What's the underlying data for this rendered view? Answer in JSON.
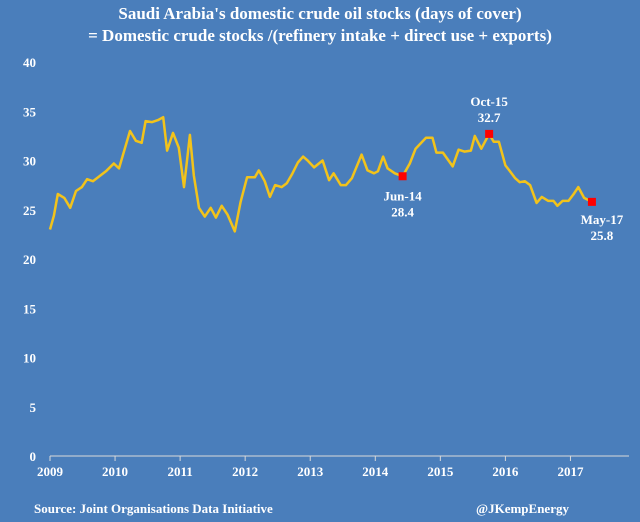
{
  "chart_data": {
    "type": "line",
    "title": "Saudi Arabia's domestic crude oil stocks  (days of cover)",
    "subtitle": "= Domestic crude stocks /(refinery intake + direct use + exports)",
    "xlabel": "",
    "ylabel": "",
    "xlim": [
      2009,
      2017.9
    ],
    "ylim": [
      0,
      40
    ],
    "x_ticks": [
      2009,
      2010,
      2011,
      2012,
      2013,
      2014,
      2015,
      2016,
      2017
    ],
    "y_ticks": [
      0,
      5,
      10,
      15,
      20,
      25,
      30,
      35,
      40
    ],
    "grid": false,
    "line_color": "#f2c31b",
    "marker_color": "#ff0000",
    "series": [
      {
        "name": "Days of cover",
        "points": [
          [
            2009.0,
            23.0
          ],
          [
            2009.06,
            24.4
          ],
          [
            2009.12,
            26.6
          ],
          [
            2009.22,
            26.2
          ],
          [
            2009.31,
            25.2
          ],
          [
            2009.4,
            26.9
          ],
          [
            2009.49,
            27.3
          ],
          [
            2009.57,
            28.1
          ],
          [
            2009.66,
            27.9
          ],
          [
            2009.76,
            28.4
          ],
          [
            2009.86,
            28.9
          ],
          [
            2009.98,
            29.7
          ],
          [
            2010.06,
            29.2
          ],
          [
            2010.15,
            31.2
          ],
          [
            2010.23,
            33.0
          ],
          [
            2010.32,
            32.0
          ],
          [
            2010.41,
            31.8
          ],
          [
            2010.47,
            34.0
          ],
          [
            2010.57,
            33.9
          ],
          [
            2010.66,
            34.1
          ],
          [
            2010.74,
            34.4
          ],
          [
            2010.8,
            31.0
          ],
          [
            2010.89,
            32.8
          ],
          [
            2010.98,
            31.3
          ],
          [
            2011.06,
            27.3
          ],
          [
            2011.15,
            32.6
          ],
          [
            2011.21,
            28.5
          ],
          [
            2011.29,
            25.2
          ],
          [
            2011.38,
            24.3
          ],
          [
            2011.47,
            25.2
          ],
          [
            2011.55,
            24.2
          ],
          [
            2011.64,
            25.4
          ],
          [
            2011.73,
            24.5
          ],
          [
            2011.84,
            22.8
          ],
          [
            2011.93,
            25.8
          ],
          [
            2012.03,
            28.3
          ],
          [
            2012.15,
            28.3
          ],
          [
            2012.21,
            29.0
          ],
          [
            2012.3,
            27.9
          ],
          [
            2012.38,
            26.3
          ],
          [
            2012.46,
            27.5
          ],
          [
            2012.56,
            27.3
          ],
          [
            2012.64,
            27.7
          ],
          [
            2012.72,
            28.6
          ],
          [
            2012.81,
            29.8
          ],
          [
            2012.89,
            30.4
          ],
          [
            2012.96,
            30.0
          ],
          [
            2013.06,
            29.3
          ],
          [
            2013.19,
            30.0
          ],
          [
            2013.29,
            28.0
          ],
          [
            2013.36,
            28.7
          ],
          [
            2013.47,
            27.5
          ],
          [
            2013.55,
            27.5
          ],
          [
            2013.64,
            28.2
          ],
          [
            2013.79,
            30.6
          ],
          [
            2013.88,
            29.0
          ],
          [
            2013.98,
            28.7
          ],
          [
            2014.04,
            28.9
          ],
          [
            2014.12,
            30.4
          ],
          [
            2014.19,
            29.2
          ],
          [
            2014.3,
            28.7
          ],
          [
            2014.42,
            28.4
          ],
          [
            2014.53,
            29.7
          ],
          [
            2014.62,
            31.2
          ],
          [
            2014.78,
            32.3
          ],
          [
            2014.88,
            32.3
          ],
          [
            2014.94,
            30.8
          ],
          [
            2015.04,
            30.8
          ],
          [
            2015.19,
            29.4
          ],
          [
            2015.28,
            31.1
          ],
          [
            2015.37,
            30.9
          ],
          [
            2015.47,
            31.0
          ],
          [
            2015.53,
            32.5
          ],
          [
            2015.63,
            31.2
          ],
          [
            2015.75,
            32.7
          ],
          [
            2015.82,
            31.9
          ],
          [
            2015.9,
            31.9
          ],
          [
            2016.0,
            29.5
          ],
          [
            2016.06,
            29.0
          ],
          [
            2016.15,
            28.2
          ],
          [
            2016.22,
            27.8
          ],
          [
            2016.3,
            27.9
          ],
          [
            2016.38,
            27.5
          ],
          [
            2016.48,
            25.7
          ],
          [
            2016.56,
            26.3
          ],
          [
            2016.66,
            25.9
          ],
          [
            2016.74,
            25.9
          ],
          [
            2016.8,
            25.4
          ],
          [
            2016.88,
            25.9
          ],
          [
            2016.97,
            25.9
          ],
          [
            2017.05,
            26.6
          ],
          [
            2017.12,
            27.3
          ],
          [
            2017.21,
            26.2
          ],
          [
            2017.33,
            25.8
          ]
        ]
      }
    ],
    "annotations": [
      {
        "x": 2014.42,
        "y": 28.4,
        "label": "Jun-14",
        "value": "28.4",
        "position": "below"
      },
      {
        "x": 2015.75,
        "y": 32.7,
        "label": "Oct-15",
        "value": "32.7",
        "position": "above"
      },
      {
        "x": 2017.33,
        "y": 25.8,
        "label": "May-17",
        "value": "25.8",
        "position": "below-right"
      }
    ]
  },
  "footer": {
    "source": "Source: Joint Organisations Data Initiative",
    "handle": "@JKempEnergy"
  }
}
